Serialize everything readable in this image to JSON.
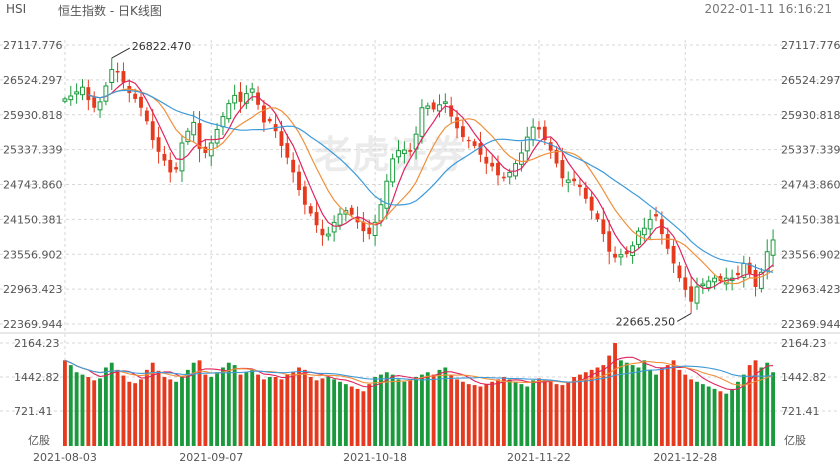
{
  "header": {
    "symbol": "HSI",
    "title": "恒生指数 - 日K线图",
    "timestamp": "2022-01-11 16:16:21"
  },
  "watermark": "老虎证券",
  "colors": {
    "up": "#1a9a3c",
    "down": "#e63a1e",
    "ma5": "#e0245e",
    "ma10": "#f0903c",
    "ma20": "#3d9ad9",
    "grid": "#d7d7d7",
    "axis_text": "#555555"
  },
  "chart_data": {
    "type": "candlestick",
    "x_ticks": [
      "2021-08-03",
      "2021-09-07",
      "2021-10-18",
      "2021-11-22",
      "2021-12-28"
    ],
    "price_axis": {
      "ticks": [
        "27117.776",
        "26524.297",
        "25930.818",
        "25337.339",
        "24743.860",
        "24150.381",
        "23556.902",
        "22963.423",
        "22369.944"
      ],
      "ylim": [
        22369.944,
        27117.776
      ]
    },
    "volume_axis": {
      "ticks": [
        "2164.23",
        "1442.82",
        "721.41"
      ],
      "unit": "亿股",
      "ylim": [
        0,
        2164.23
      ]
    },
    "annotations": [
      {
        "text": "26822.470",
        "type": "high"
      },
      {
        "text": "22665.250",
        "type": "low"
      }
    ],
    "moving_averages": [
      "MA5",
      "MA10",
      "MA20"
    ],
    "closes": [
      26200,
      26250,
      26320,
      26400,
      26180,
      26050,
      26150,
      26420,
      26700,
      26650,
      26480,
      26300,
      26200,
      26050,
      25820,
      25500,
      25300,
      25150,
      24950,
      25000,
      25450,
      25650,
      25800,
      25350,
      25280,
      25450,
      25680,
      25900,
      26120,
      26260,
      26150,
      26290,
      26370,
      26100,
      25800,
      25820,
      25650,
      25400,
      25200,
      24950,
      24650,
      24400,
      24250,
      24050,
      23880,
      23900,
      24100,
      24240,
      24300,
      24230,
      24100,
      23950,
      23900,
      24100,
      24400,
      24800,
      25180,
      25320,
      25330,
      25300,
      25600,
      26050,
      26080,
      26020,
      26100,
      26150,
      25900,
      25700,
      25550,
      25480,
      25400,
      25250,
      25100,
      25050,
      24900,
      24850,
      24950,
      25100,
      25280,
      25550,
      25720,
      25680,
      25500,
      25320,
      25100,
      24850,
      24820,
      24800,
      24700,
      24500,
      24300,
      24150,
      23900,
      23600,
      23500,
      23550,
      23560,
      23700,
      23950,
      24000,
      24150,
      24200,
      23900,
      23650,
      23400,
      23150,
      22950,
      22750,
      23000,
      23050,
      23100,
      23150,
      23100,
      23150,
      23150,
      23200,
      23400,
      23230,
      23000,
      23250,
      23600,
      23800
    ],
    "volumes": [
      1800,
      1700,
      1550,
      1500,
      1450,
      1380,
      1420,
      1650,
      1750,
      1600,
      1480,
      1350,
      1320,
      1400,
      1600,
      1750,
      1580,
      1450,
      1400,
      1350,
      1450,
      1600,
      1750,
      1800,
      1500,
      1450,
      1550,
      1650,
      1750,
      1700,
      1500,
      1550,
      1600,
      1500,
      1400,
      1450,
      1450,
      1400,
      1500,
      1550,
      1650,
      1600,
      1450,
      1380,
      1420,
      1450,
      1400,
      1350,
      1300,
      1250,
      1200,
      1150,
      1300,
      1450,
      1500,
      1550,
      1500,
      1400,
      1350,
      1400,
      1450,
      1500,
      1550,
      1500,
      1600,
      1650,
      1500,
      1400,
      1350,
      1300,
      1280,
      1250,
      1300,
      1350,
      1400,
      1450,
      1400,
      1350,
      1300,
      1250,
      1380,
      1420,
      1400,
      1350,
      1300,
      1280,
      1350,
      1450,
      1500,
      1550,
      1600,
      1650,
      1700,
      1900,
      2164,
      1800,
      1750,
      1700,
      1650,
      1800,
      1600,
      1500,
      1650,
      1700,
      1800,
      1600,
      1500,
      1400,
      1350,
      1300,
      1250,
      1200,
      1150,
      1100,
      1200,
      1350,
      1500,
      1700,
      1800,
      1650,
      1750,
      1550
    ]
  }
}
